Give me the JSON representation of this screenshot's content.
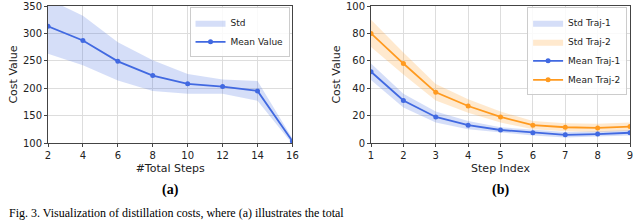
{
  "chart_data": [
    {
      "type": "line",
      "annotation": "(a)",
      "x_label": "#Total Steps",
      "y_label": "Cost Value",
      "x": [
        2,
        4,
        6,
        8,
        10,
        12,
        14,
        16
      ],
      "series": [
        {
          "name": "Mean Value",
          "std_name": "Std",
          "color": "#4169e1",
          "marker": "circle",
          "values": [
            313,
            287,
            249,
            223,
            208,
            203,
            195,
            103
          ],
          "std": [
            50,
            45,
            35,
            28,
            18,
            13,
            18,
            5
          ]
        }
      ],
      "xlim": [
        2,
        16
      ],
      "xticks": [
        2,
        4,
        6,
        8,
        10,
        12,
        14,
        16
      ],
      "ylim": [
        100,
        350
      ],
      "yticks": [
        100,
        150,
        200,
        250,
        300,
        350
      ],
      "grid": true,
      "legend": "upper right"
    },
    {
      "type": "line",
      "annotation": "(b)",
      "x_label": "Step Index",
      "y_label": "Cost Value",
      "x": [
        1,
        2,
        3,
        4,
        5,
        6,
        7,
        8,
        9
      ],
      "series": [
        {
          "name": "Mean Traj-1",
          "std_name": "Std Traj-1",
          "color": "#4169e1",
          "marker": "circle",
          "values": [
            52,
            31,
            19,
            13,
            9.5,
            7.5,
            6,
            6.5,
            7.5
          ],
          "std": [
            6,
            5,
            4,
            3,
            2,
            2,
            2,
            2,
            2
          ]
        },
        {
          "name": "Mean Traj-2",
          "std_name": "Std Traj-2",
          "color": "#ff9a1f",
          "marker": "circle",
          "values": [
            80,
            58,
            37,
            27,
            19,
            13,
            11.5,
            11,
            12
          ],
          "std": [
            10,
            8,
            6,
            5,
            4,
            3,
            3,
            3,
            3
          ]
        }
      ],
      "xlim": [
        1,
        9
      ],
      "xticks": [
        1,
        2,
        3,
        4,
        5,
        6,
        7,
        8,
        9
      ],
      "ylim": [
        0,
        100
      ],
      "yticks": [
        0,
        20,
        40,
        60,
        80,
        100
      ],
      "grid": true,
      "legend": "upper right"
    }
  ],
  "caption": "Fig. 3. Visualization of distillation costs, where (a) illustrates the total"
}
